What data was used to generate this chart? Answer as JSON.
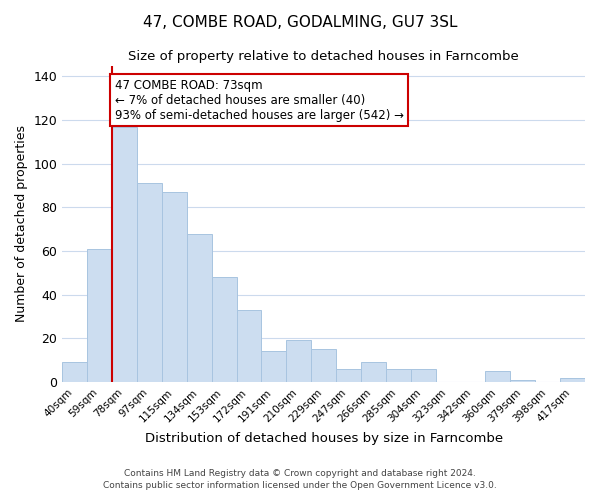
{
  "title": "47, COMBE ROAD, GODALMING, GU7 3SL",
  "subtitle": "Size of property relative to detached houses in Farncombe",
  "xlabel": "Distribution of detached houses by size in Farncombe",
  "ylabel": "Number of detached properties",
  "bar_labels": [
    "40sqm",
    "59sqm",
    "78sqm",
    "97sqm",
    "115sqm",
    "134sqm",
    "153sqm",
    "172sqm",
    "191sqm",
    "210sqm",
    "229sqm",
    "247sqm",
    "266sqm",
    "285sqm",
    "304sqm",
    "323sqm",
    "342sqm",
    "360sqm",
    "379sqm",
    "398sqm",
    "417sqm"
  ],
  "bar_values": [
    9,
    61,
    117,
    91,
    87,
    68,
    48,
    33,
    14,
    19,
    15,
    6,
    9,
    6,
    6,
    0,
    0,
    5,
    1,
    0,
    2
  ],
  "bar_color": "#ccddf0",
  "bar_edge_color": "#a8c4e0",
  "vline_color": "#cc0000",
  "ylim": [
    0,
    145
  ],
  "yticks": [
    0,
    20,
    40,
    60,
    80,
    100,
    120,
    140
  ],
  "annotation_title": "47 COMBE ROAD: 73sqm",
  "annotation_line1": "← 7% of detached houses are smaller (40)",
  "annotation_line2": "93% of semi-detached houses are larger (542) →",
  "annotation_box_color": "#ffffff",
  "annotation_box_edge": "#cc0000",
  "footer_line1": "Contains HM Land Registry data © Crown copyright and database right 2024.",
  "footer_line2": "Contains public sector information licensed under the Open Government Licence v3.0.",
  "background_color": "#ffffff",
  "grid_color": "#ccdaed"
}
